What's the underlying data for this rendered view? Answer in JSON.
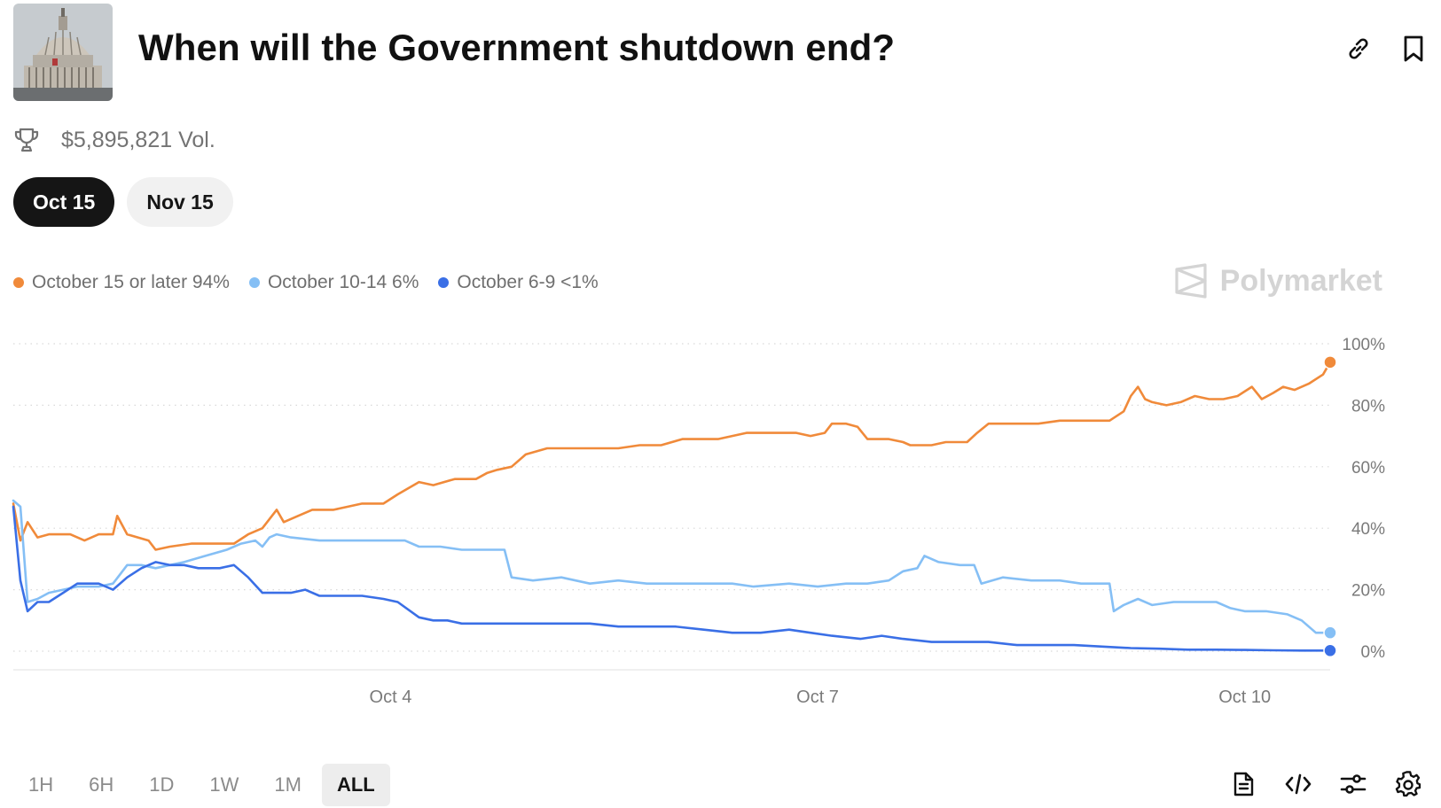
{
  "header": {
    "title": "When will the Government shutdown end?",
    "thumbnail_alt": "capitol-dome"
  },
  "actions": {
    "link_icon": "link-icon",
    "bookmark_icon": "bookmark-icon"
  },
  "volume": {
    "text": "$5,895,821 Vol.",
    "icon": "trophy-icon"
  },
  "tabs": [
    {
      "label": "Oct 15",
      "active": true
    },
    {
      "label": "Nov 15",
      "active": false
    }
  ],
  "brand": {
    "name": "Polymarket",
    "color": "#d4d4d4"
  },
  "legend": [
    {
      "label": "October 15 or later 94%",
      "color": "#f08a3a"
    },
    {
      "label": "October 10-14 6%",
      "color": "#85bff5"
    },
    {
      "label": "October 6-9 <1%",
      "color": "#3a6fe6"
    }
  ],
  "chart_data": {
    "type": "line",
    "x_ticks": [
      "Oct 4",
      "Oct 7",
      "Oct 10"
    ],
    "x_tick_positions": [
      4,
      7,
      10
    ],
    "xlim": [
      1.35,
      10.6
    ],
    "y_ticks": [
      "100%",
      "80%",
      "60%",
      "40%",
      "20%",
      "0%"
    ],
    "y_tick_values": [
      100,
      80,
      60,
      40,
      20,
      0
    ],
    "ylim": [
      0,
      100
    ],
    "grid": true,
    "series": [
      {
        "name": "October 15 or later",
        "color": "#f08a3a",
        "points": [
          [
            1.35,
            48
          ],
          [
            1.4,
            36
          ],
          [
            1.45,
            42
          ],
          [
            1.52,
            37
          ],
          [
            1.6,
            38
          ],
          [
            1.75,
            38
          ],
          [
            1.85,
            36
          ],
          [
            1.95,
            38
          ],
          [
            2.05,
            38
          ],
          [
            2.08,
            44
          ],
          [
            2.15,
            38
          ],
          [
            2.3,
            36
          ],
          [
            2.35,
            33
          ],
          [
            2.45,
            34
          ],
          [
            2.6,
            35
          ],
          [
            2.9,
            35
          ],
          [
            3.0,
            38
          ],
          [
            3.1,
            40
          ],
          [
            3.2,
            46
          ],
          [
            3.25,
            42
          ],
          [
            3.35,
            44
          ],
          [
            3.45,
            46
          ],
          [
            3.6,
            46
          ],
          [
            3.7,
            47
          ],
          [
            3.8,
            48
          ],
          [
            3.95,
            48
          ],
          [
            4.05,
            51
          ],
          [
            4.2,
            55
          ],
          [
            4.3,
            54
          ],
          [
            4.45,
            56
          ],
          [
            4.6,
            56
          ],
          [
            4.68,
            58
          ],
          [
            4.75,
            59
          ],
          [
            4.85,
            60
          ],
          [
            4.95,
            64
          ],
          [
            5.1,
            66
          ],
          [
            5.3,
            66
          ],
          [
            5.6,
            66
          ],
          [
            5.75,
            67
          ],
          [
            5.9,
            67
          ],
          [
            6.05,
            69
          ],
          [
            6.3,
            69
          ],
          [
            6.5,
            71
          ],
          [
            6.7,
            71
          ],
          [
            6.85,
            71
          ],
          [
            6.95,
            70
          ],
          [
            7.05,
            71
          ],
          [
            7.1,
            74
          ],
          [
            7.2,
            74
          ],
          [
            7.28,
            73
          ],
          [
            7.35,
            69
          ],
          [
            7.5,
            69
          ],
          [
            7.6,
            68
          ],
          [
            7.65,
            67
          ],
          [
            7.8,
            67
          ],
          [
            7.9,
            68
          ],
          [
            8.05,
            68
          ],
          [
            8.12,
            71
          ],
          [
            8.2,
            74
          ],
          [
            8.45,
            74
          ],
          [
            8.55,
            74
          ],
          [
            8.7,
            75
          ],
          [
            8.85,
            75
          ],
          [
            9.05,
            75
          ],
          [
            9.15,
            78
          ],
          [
            9.2,
            83
          ],
          [
            9.25,
            86
          ],
          [
            9.3,
            82
          ],
          [
            9.35,
            81
          ],
          [
            9.45,
            80
          ],
          [
            9.55,
            81
          ],
          [
            9.65,
            83
          ],
          [
            9.75,
            82
          ],
          [
            9.85,
            82
          ],
          [
            9.95,
            83
          ],
          [
            10.05,
            86
          ],
          [
            10.12,
            82
          ],
          [
            10.2,
            84
          ],
          [
            10.27,
            86
          ],
          [
            10.35,
            85
          ],
          [
            10.45,
            87
          ],
          [
            10.55,
            90
          ],
          [
            10.6,
            94
          ]
        ]
      },
      {
        "name": "October 10-14",
        "color": "#85bff5",
        "points": [
          [
            1.35,
            49
          ],
          [
            1.4,
            47
          ],
          [
            1.45,
            16
          ],
          [
            1.52,
            17
          ],
          [
            1.6,
            19
          ],
          [
            1.7,
            20
          ],
          [
            1.8,
            21
          ],
          [
            1.95,
            21
          ],
          [
            2.05,
            22
          ],
          [
            2.1,
            25
          ],
          [
            2.15,
            28
          ],
          [
            2.25,
            28
          ],
          [
            2.35,
            27
          ],
          [
            2.45,
            28
          ],
          [
            2.55,
            29
          ],
          [
            2.7,
            31
          ],
          [
            2.85,
            33
          ],
          [
            2.95,
            35
          ],
          [
            3.05,
            36
          ],
          [
            3.1,
            34
          ],
          [
            3.15,
            37
          ],
          [
            3.2,
            38
          ],
          [
            3.3,
            37
          ],
          [
            3.5,
            36
          ],
          [
            3.8,
            36
          ],
          [
            4.0,
            36
          ],
          [
            4.1,
            36
          ],
          [
            4.2,
            34
          ],
          [
            4.35,
            34
          ],
          [
            4.5,
            33
          ],
          [
            4.65,
            33
          ],
          [
            4.75,
            33
          ],
          [
            4.8,
            33
          ],
          [
            4.85,
            24
          ],
          [
            5.0,
            23
          ],
          [
            5.2,
            24
          ],
          [
            5.4,
            22
          ],
          [
            5.6,
            23
          ],
          [
            5.8,
            22
          ],
          [
            6.0,
            22
          ],
          [
            6.2,
            22
          ],
          [
            6.4,
            22
          ],
          [
            6.55,
            21
          ],
          [
            6.8,
            22
          ],
          [
            7.0,
            21
          ],
          [
            7.2,
            22
          ],
          [
            7.35,
            22
          ],
          [
            7.5,
            23
          ],
          [
            7.6,
            26
          ],
          [
            7.7,
            27
          ],
          [
            7.75,
            31
          ],
          [
            7.85,
            29
          ],
          [
            8.0,
            28
          ],
          [
            8.1,
            28
          ],
          [
            8.15,
            22
          ],
          [
            8.3,
            24
          ],
          [
            8.5,
            23
          ],
          [
            8.7,
            23
          ],
          [
            8.85,
            22
          ],
          [
            9.0,
            22
          ],
          [
            9.05,
            22
          ],
          [
            9.08,
            13
          ],
          [
            9.15,
            15
          ],
          [
            9.25,
            17
          ],
          [
            9.35,
            15
          ],
          [
            9.5,
            16
          ],
          [
            9.65,
            16
          ],
          [
            9.8,
            16
          ],
          [
            9.9,
            14
          ],
          [
            10.0,
            13
          ],
          [
            10.15,
            13
          ],
          [
            10.3,
            12
          ],
          [
            10.4,
            10
          ],
          [
            10.5,
            6
          ],
          [
            10.6,
            6
          ]
        ]
      },
      {
        "name": "October 6-9",
        "color": "#3a6fe6",
        "points": [
          [
            1.35,
            47
          ],
          [
            1.4,
            23
          ],
          [
            1.45,
            13
          ],
          [
            1.52,
            16
          ],
          [
            1.6,
            16
          ],
          [
            1.7,
            19
          ],
          [
            1.8,
            22
          ],
          [
            1.95,
            22
          ],
          [
            2.05,
            20
          ],
          [
            2.15,
            24
          ],
          [
            2.25,
            27
          ],
          [
            2.35,
            29
          ],
          [
            2.45,
            28
          ],
          [
            2.55,
            28
          ],
          [
            2.65,
            27
          ],
          [
            2.8,
            27
          ],
          [
            2.9,
            28
          ],
          [
            3.0,
            24
          ],
          [
            3.1,
            19
          ],
          [
            3.2,
            19
          ],
          [
            3.3,
            19
          ],
          [
            3.4,
            20
          ],
          [
            3.5,
            18
          ],
          [
            3.6,
            18
          ],
          [
            3.8,
            18
          ],
          [
            3.95,
            17
          ],
          [
            4.05,
            16
          ],
          [
            4.2,
            11
          ],
          [
            4.3,
            10
          ],
          [
            4.4,
            10
          ],
          [
            4.5,
            9
          ],
          [
            4.65,
            9
          ],
          [
            4.8,
            9
          ],
          [
            5.0,
            9
          ],
          [
            5.2,
            9
          ],
          [
            5.4,
            9
          ],
          [
            5.6,
            8
          ],
          [
            5.8,
            8
          ],
          [
            6.0,
            8
          ],
          [
            6.2,
            7
          ],
          [
            6.4,
            6
          ],
          [
            6.6,
            6
          ],
          [
            6.8,
            7
          ],
          [
            6.95,
            6
          ],
          [
            7.1,
            5
          ],
          [
            7.3,
            4
          ],
          [
            7.45,
            5
          ],
          [
            7.6,
            4
          ],
          [
            7.8,
            3
          ],
          [
            8.0,
            3
          ],
          [
            8.2,
            3
          ],
          [
            8.4,
            2
          ],
          [
            8.6,
            2
          ],
          [
            8.8,
            2
          ],
          [
            9.0,
            1.5
          ],
          [
            9.2,
            1
          ],
          [
            9.4,
            0.8
          ],
          [
            9.6,
            0.5
          ],
          [
            9.8,
            0.5
          ],
          [
            10.0,
            0.4
          ],
          [
            10.2,
            0.3
          ],
          [
            10.4,
            0.2
          ],
          [
            10.6,
            0.2
          ]
        ]
      }
    ]
  },
  "time_ranges": [
    {
      "label": "1H",
      "active": false
    },
    {
      "label": "6H",
      "active": false
    },
    {
      "label": "1D",
      "active": false
    },
    {
      "label": "1W",
      "active": false
    },
    {
      "label": "1M",
      "active": false
    },
    {
      "label": "ALL",
      "active": true
    }
  ],
  "bottom_tools": {
    "document_icon": "document-icon",
    "code_icon": "code-icon",
    "filter_icon": "sliders-icon",
    "settings_icon": "gear-icon"
  }
}
